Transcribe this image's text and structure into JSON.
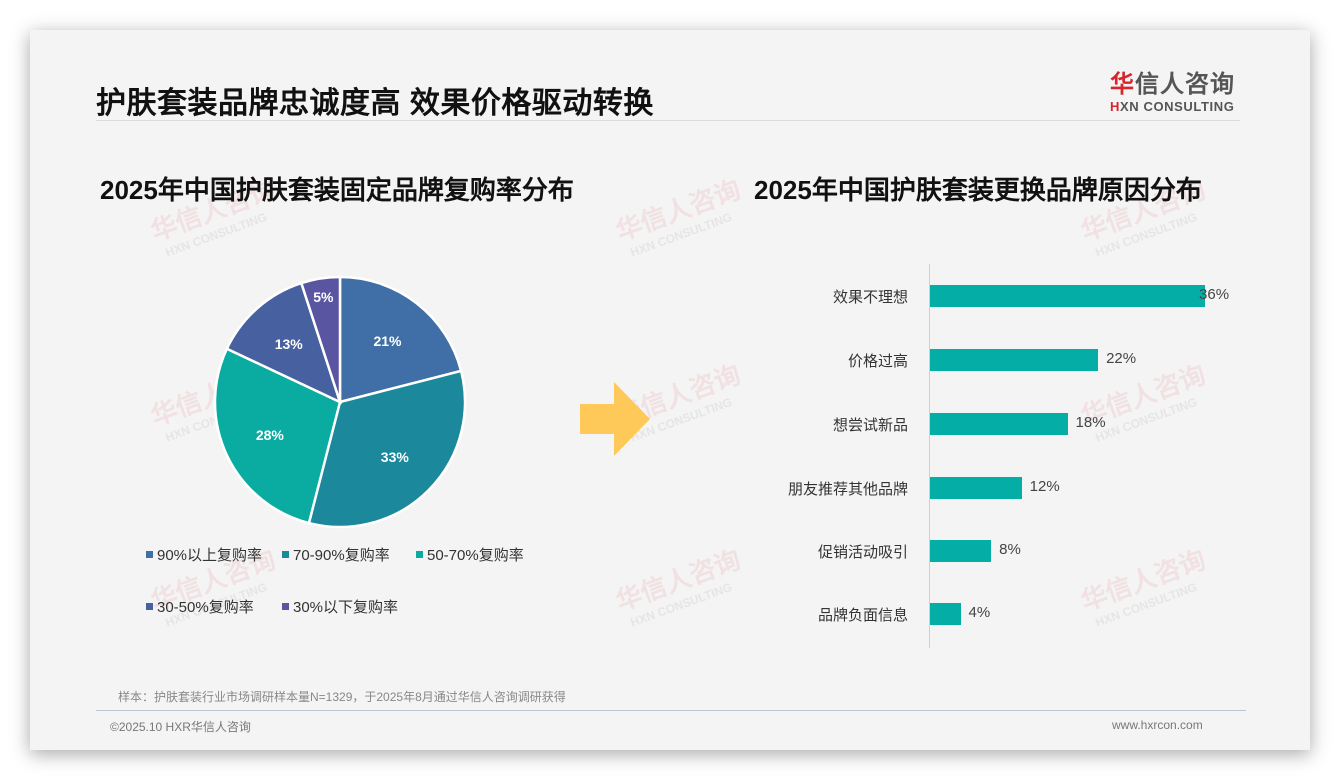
{
  "header": {
    "title": "护肤套装品牌忠诚度高 效果价格驱动转换",
    "logo": {
      "cn_red": "华",
      "cn_rest": "信人咨询",
      "en_red": "H",
      "en_rest": "XN CONSULTING"
    }
  },
  "watermark": {
    "cn": "华信人咨询",
    "en": "HXN CONSULTING"
  },
  "colors": {
    "accent_bar": "#04aea6",
    "arrow": "#ffc95a",
    "logo_red": "#d6262b"
  },
  "chart_data": [
    {
      "type": "pie",
      "title": "2025年中国护肤套装固定品牌复购率分布",
      "categories": [
        "90%以上复购率",
        "70-90%复购率",
        "50-70%复购率",
        "30-50%复购率",
        "30%以下复购率"
      ],
      "values": [
        21,
        33,
        28,
        13,
        5
      ],
      "labels": [
        "21%",
        "33%",
        "28%",
        "13%",
        "5%"
      ],
      "colors": [
        "#3f6fa6",
        "#1b889c",
        "#0aaba1",
        "#4760a0",
        "#5a55a0"
      ],
      "legend_position": "bottom",
      "start_angle": "12 o'clock, clockwise"
    },
    {
      "type": "bar",
      "orientation": "horizontal",
      "title": "2025年中国护肤套装更换品牌原因分布",
      "categories": [
        "效果不理想",
        "价格过高",
        "想尝试新品",
        "朋友推荐其他品牌",
        "促销活动吸引",
        "品牌负面信息"
      ],
      "values": [
        36,
        22,
        18,
        12,
        8,
        4
      ],
      "labels": [
        "36%",
        "22%",
        "18%",
        "12%",
        "8%",
        "4%"
      ],
      "unit": "%",
      "color": "#04aea6",
      "xlabel": "",
      "ylabel": "",
      "grid": false
    }
  ],
  "legend": [
    {
      "label": "90%以上复购率",
      "color": "#3f6fa6"
    },
    {
      "label": "70-90%复购率",
      "color": "#1b889c"
    },
    {
      "label": "50-70%复购率",
      "color": "#0aaba1"
    },
    {
      "label": "30-50%复购率",
      "color": "#4760a0"
    },
    {
      "label": "30%以下复购率",
      "color": "#5a55a0"
    }
  ],
  "footer": {
    "sample_note": "样本：护肤套装行业市场调研样本量N=1329，于2025年8月通过华信人咨询调研获得",
    "copyright": "©2025.10 HXR华信人咨询",
    "website": "www.hxrcon.com"
  }
}
